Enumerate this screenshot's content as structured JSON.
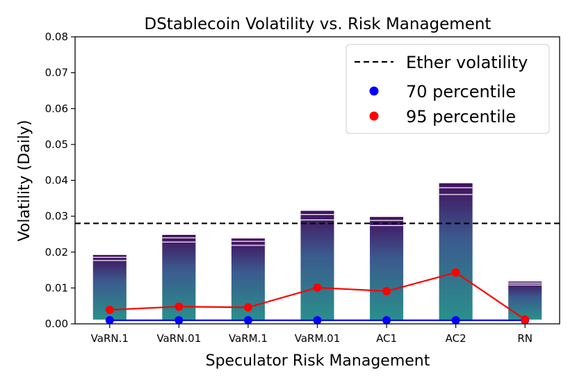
{
  "chart_data": {
    "type": "bar",
    "title": "DStablecoin Volatility vs. Risk Management",
    "xlabel": "Speculator Risk Management",
    "ylabel": "Volatility (Daily)",
    "ylim": [
      0,
      0.08
    ],
    "yticks": [
      "0.00",
      "0.01",
      "0.02",
      "0.03",
      "0.04",
      "0.05",
      "0.06",
      "0.07",
      "0.08"
    ],
    "categories": [
      "VaRN.1",
      "VaRN.01",
      "VaRM.1",
      "VaRM.01",
      "AC1",
      "AC2",
      "RN"
    ],
    "bar_top": [
      0.0192,
      0.0248,
      0.0238,
      0.0315,
      0.0298,
      0.0392,
      0.0118
    ],
    "bar_bottom": 0.0013,
    "reference_line": {
      "name": "Ether volatility",
      "value": 0.028,
      "color": "#000000"
    },
    "series": [
      {
        "name": "70 percentile",
        "color": "#0000ff",
        "values": [
          0.001,
          0.001,
          0.001,
          0.001,
          0.001,
          0.001,
          0.001
        ]
      },
      {
        "name": "95 percentile",
        "color": "#ff0000",
        "values": [
          0.0039,
          0.0048,
          0.0046,
          0.0101,
          0.0091,
          0.0143,
          0.0012
        ]
      }
    ],
    "legend": {
      "position": "top-right",
      "entries": [
        "Ether volatility",
        "70 percentile",
        "95 percentile"
      ]
    },
    "colors": {
      "bar_low": "#2a8f8c",
      "bar_mid": "#3b5a8e",
      "bar_high": "#43125f"
    }
  }
}
